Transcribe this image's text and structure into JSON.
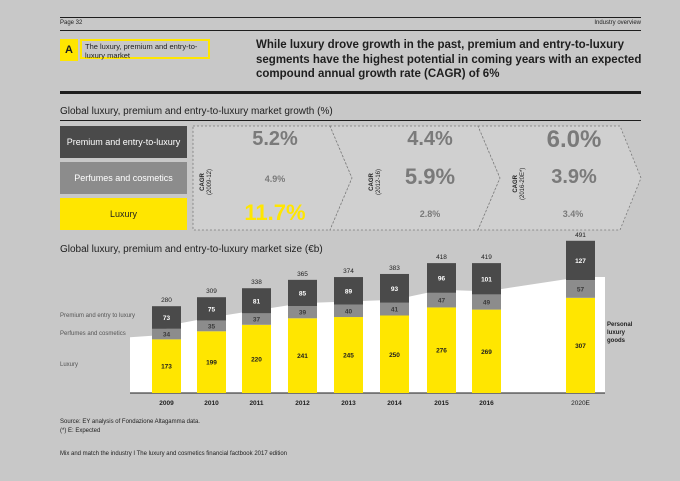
{
  "header": {
    "page_label": "Page 32",
    "section_label": "Industry overview"
  },
  "badge_letter": "A",
  "subtitle": "The luxury, premium and entry-to-luxury market",
  "headline": "While luxury drove growth in the past, premium and entry-to-luxury segments have the highest potential in coming years with an expected compound annual growth rate (CAGR) of 6%",
  "growth_section": {
    "title": "Global luxury, premium and entry-to-luxury market growth (%)",
    "categories": [
      "Premium and entry-to-luxury",
      "Perfumes and cosmetics",
      "Luxury"
    ],
    "periods": [
      {
        "label": "CAGR",
        "years": "(2009-12)",
        "premium": "5.2%",
        "perfumes": "4.9%",
        "luxury": "11.7%"
      },
      {
        "label": "CAGR",
        "years": "(2012-16)",
        "premium": "4.4%",
        "perfumes": "5.9%",
        "luxury": "2.8%"
      },
      {
        "label": "CAGR",
        "years": "(2016-20E*)",
        "premium": "6.0%",
        "perfumes": "3.9%",
        "luxury": "3.4%"
      }
    ]
  },
  "chart_data": {
    "type": "bar",
    "title": "Global luxury, premium and entry-to-luxury market size (€b)",
    "categories": [
      "2009",
      "2010",
      "2011",
      "2012",
      "2013",
      "2014",
      "2015",
      "2016",
      "2020E"
    ],
    "series": [
      {
        "name": "Luxury",
        "values": [
          173,
          199,
          220,
          241,
          245,
          250,
          276,
          269,
          307
        ]
      },
      {
        "name": "Perfumes and cosmetics",
        "values": [
          34,
          35,
          37,
          39,
          40,
          41,
          47,
          49,
          57
        ]
      },
      {
        "name": "Premium and entry to luxury",
        "values": [
          73,
          75,
          81,
          85,
          89,
          93,
          96,
          101,
          127
        ]
      }
    ],
    "totals": [
      280,
      309,
      338,
      365,
      374,
      383,
      418,
      419,
      491
    ],
    "annotation": "Personal luxury goods",
    "stacked": true
  },
  "colors": {
    "luxury": "#ffe600",
    "perfumes": "#8c8c8c",
    "premium": "#4a4a4a",
    "background": "#c8c8c8"
  },
  "footer": {
    "source": "Source: EY analysis of Fondazione Altagamma data.",
    "note": "(*) E: Expected",
    "book": "Mix and match the industry I The luxury and cosmetics financial factbook 2017 edition"
  }
}
